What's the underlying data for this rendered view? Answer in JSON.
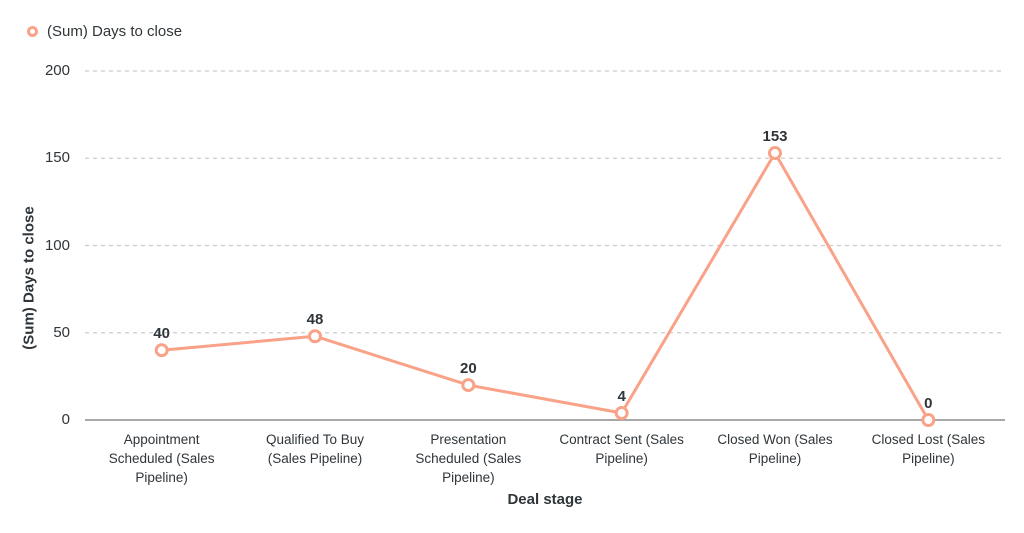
{
  "legend": {
    "label": "(Sum) Days to close"
  },
  "chart_data": {
    "type": "line",
    "title": "",
    "categories": [
      "Appointment Scheduled (Sales Pipeline)",
      "Qualified To Buy (Sales Pipeline)",
      "Presentation Scheduled (Sales Pipeline)",
      "Contract Sent (Sales Pipeline)",
      "Closed Won (Sales Pipeline)",
      "Closed Lost (Sales Pipeline)"
    ],
    "series": [
      {
        "name": "(Sum) Days to close",
        "values": [
          40,
          48,
          20,
          4,
          153,
          0
        ]
      }
    ],
    "data_labels": [
      "40",
      "48",
      "20",
      "4",
      "153",
      "0"
    ],
    "xlabel": "Deal stage",
    "ylabel": "(Sum) Days to close",
    "ylim": [
      0,
      200
    ],
    "yticks": [
      0,
      50,
      100,
      150,
      200
    ],
    "grid": "horizontal-dashed",
    "legend_position": "top-left",
    "colors": {
      "line": "#F9A287",
      "marker_fill": "#FFFFFF",
      "grid": "#CCCCCC",
      "axis": "#8C8C8C",
      "text": "#2F3539"
    }
  }
}
